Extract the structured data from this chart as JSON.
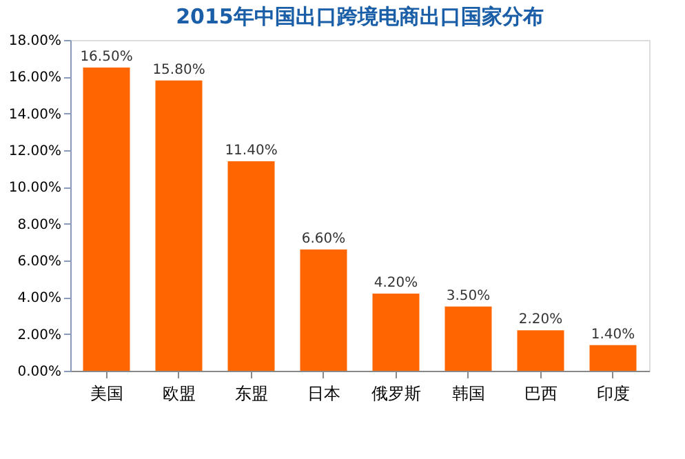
{
  "chart_data": {
    "type": "bar",
    "title": "2015年中国出口跨境电商出口国家分布",
    "categories": [
      "美国",
      "欧盟",
      "东盟",
      "日本",
      "俄罗斯",
      "韩国",
      "巴西",
      "印度"
    ],
    "values": [
      16.5,
      15.8,
      11.4,
      6.6,
      4.2,
      3.5,
      2.2,
      1.4
    ],
    "value_labels": [
      "16.50%",
      "15.80%",
      "11.40%",
      "6.60%",
      "4.20%",
      "3.50%",
      "2.20%",
      "1.40%"
    ],
    "color": "#ff6600",
    "ylim": [
      0,
      18
    ],
    "yticks": [
      {
        "value": 0,
        "label": "0.00%"
      },
      {
        "value": 2,
        "label": "2.00%"
      },
      {
        "value": 4,
        "label": "4.00%"
      },
      {
        "value": 6,
        "label": "6.00%"
      },
      {
        "value": 8,
        "label": "8.00%"
      },
      {
        "value": 10,
        "label": "10.00%"
      },
      {
        "value": 12,
        "label": "12.00%"
      },
      {
        "value": 14,
        "label": "14.00%"
      },
      {
        "value": 16,
        "label": "16.00%"
      },
      {
        "value": 18,
        "label": "18.00%"
      }
    ],
    "grid": false
  }
}
